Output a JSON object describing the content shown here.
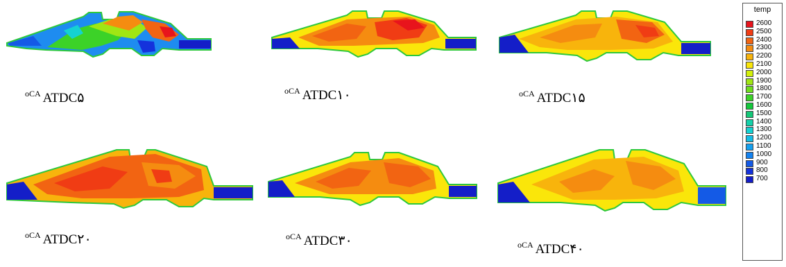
{
  "panels": [
    {
      "id": "p5",
      "caption": {
        "sup": "oCA",
        "text": "ATDC۵"
      }
    },
    {
      "id": "p10",
      "caption": {
        "sup": "oCA",
        "text": "ATDC۱۰"
      }
    },
    {
      "id": "p15",
      "caption": {
        "sup": "oCA",
        "text": "ATDC۱۵"
      }
    },
    {
      "id": "p20",
      "caption": {
        "sup": "oCA",
        "text": "ATDC۲۰"
      }
    },
    {
      "id": "p30",
      "caption": {
        "sup": "oCA",
        "text": "ATDC۳۰"
      }
    },
    {
      "id": "p40",
      "caption": {
        "sup": "oCA",
        "text": "ATDC۴۰"
      }
    }
  ],
  "legend": {
    "title": "temp",
    "levels": [
      {
        "label": "2600",
        "color": "#e8141c"
      },
      {
        "label": "2500",
        "color": "#f03c14"
      },
      {
        "label": "2400",
        "color": "#f26412"
      },
      {
        "label": "2300",
        "color": "#f58c10"
      },
      {
        "label": "2200",
        "color": "#f8b40c"
      },
      {
        "label": "2100",
        "color": "#fae60a"
      },
      {
        "label": "2000",
        "color": "#d2f00a"
      },
      {
        "label": "1900",
        "color": "#a0e614"
      },
      {
        "label": "1800",
        "color": "#6ede1e"
      },
      {
        "label": "1700",
        "color": "#3cd228"
      },
      {
        "label": "1600",
        "color": "#14c83c"
      },
      {
        "label": "1500",
        "color": "#14c878"
      },
      {
        "label": "1400",
        "color": "#14d2aa"
      },
      {
        "label": "1300",
        "color": "#14d2d2"
      },
      {
        "label": "1200",
        "color": "#14bee6"
      },
      {
        "label": "1100",
        "color": "#14a0f0"
      },
      {
        "label": "1000",
        "color": "#1482f0"
      },
      {
        "label": "900",
        "color": "#145ae6"
      },
      {
        "label": "800",
        "color": "#1432dc"
      },
      {
        "label": "700",
        "color": "#141ec8"
      }
    ]
  }
}
